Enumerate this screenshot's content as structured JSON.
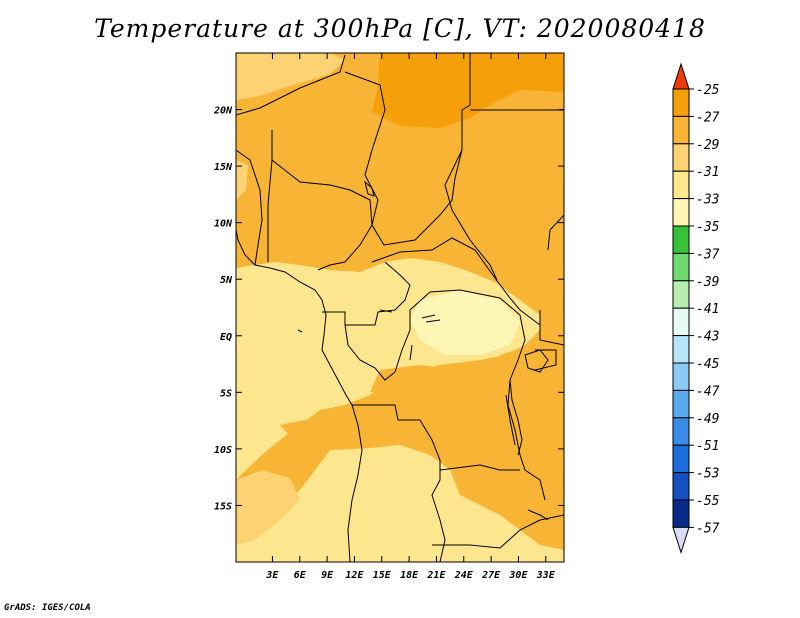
{
  "title": "Temperature at 300hPa [C], VT: 2020080418",
  "credit": "GrADS: IGES/COLA",
  "map": {
    "lon_range": [
      -1,
      35
    ],
    "lat_range": [
      -20,
      25
    ],
    "x_ticks": [
      {
        "value": 3,
        "label": "3E"
      },
      {
        "value": 6,
        "label": "6E"
      },
      {
        "value": 9,
        "label": "9E"
      },
      {
        "value": 12,
        "label": "12E"
      },
      {
        "value": 15,
        "label": "15E"
      },
      {
        "value": 18,
        "label": "18E"
      },
      {
        "value": 21,
        "label": "21E"
      },
      {
        "value": 24,
        "label": "24E"
      },
      {
        "value": 27,
        "label": "27E"
      },
      {
        "value": 30,
        "label": "30E"
      },
      {
        "value": 33,
        "label": "33E"
      }
    ],
    "y_ticks": [
      {
        "value": 20,
        "label": "20N"
      },
      {
        "value": 15,
        "label": "15N"
      },
      {
        "value": 10,
        "label": "10N"
      },
      {
        "value": 5,
        "label": "5N"
      },
      {
        "value": 0,
        "label": "EQ"
      },
      {
        "value": -5,
        "label": "5S"
      },
      {
        "value": -10,
        "label": "10S"
      },
      {
        "value": -15,
        "label": "15S"
      }
    ]
  },
  "colorbar": {
    "levels": [
      {
        "label": "-25",
        "color": "#f05a0a"
      },
      {
        "label": "-27",
        "color": "#f5a00a"
      },
      {
        "label": "-29",
        "color": "#f8b435"
      },
      {
        "label": "-31",
        "color": "#fcd273"
      },
      {
        "label": "-33",
        "color": "#fde68e"
      },
      {
        "label": "-35",
        "color": "#fef6b4"
      },
      {
        "label": "-37",
        "color": "#38c23a"
      },
      {
        "label": "-39",
        "color": "#6fdb6f"
      },
      {
        "label": "-41",
        "color": "#b5eeb0"
      },
      {
        "label": "-43",
        "color": "#e6fbf3"
      },
      {
        "label": "-45",
        "color": "#b8e4f8"
      },
      {
        "label": "-47",
        "color": "#8ccaf5"
      },
      {
        "label": "-49",
        "color": "#5aaaf0"
      },
      {
        "label": "-51",
        "color": "#3a8ce8"
      },
      {
        "label": "-53",
        "color": "#1e6ee0"
      },
      {
        "label": "-55",
        "color": "#1450c0"
      },
      {
        "label": "-57",
        "color": "#0a2a8a"
      }
    ],
    "top_arrow_color": "#f03c0a",
    "bottom_arrow_color": "#dcdcf8"
  }
}
